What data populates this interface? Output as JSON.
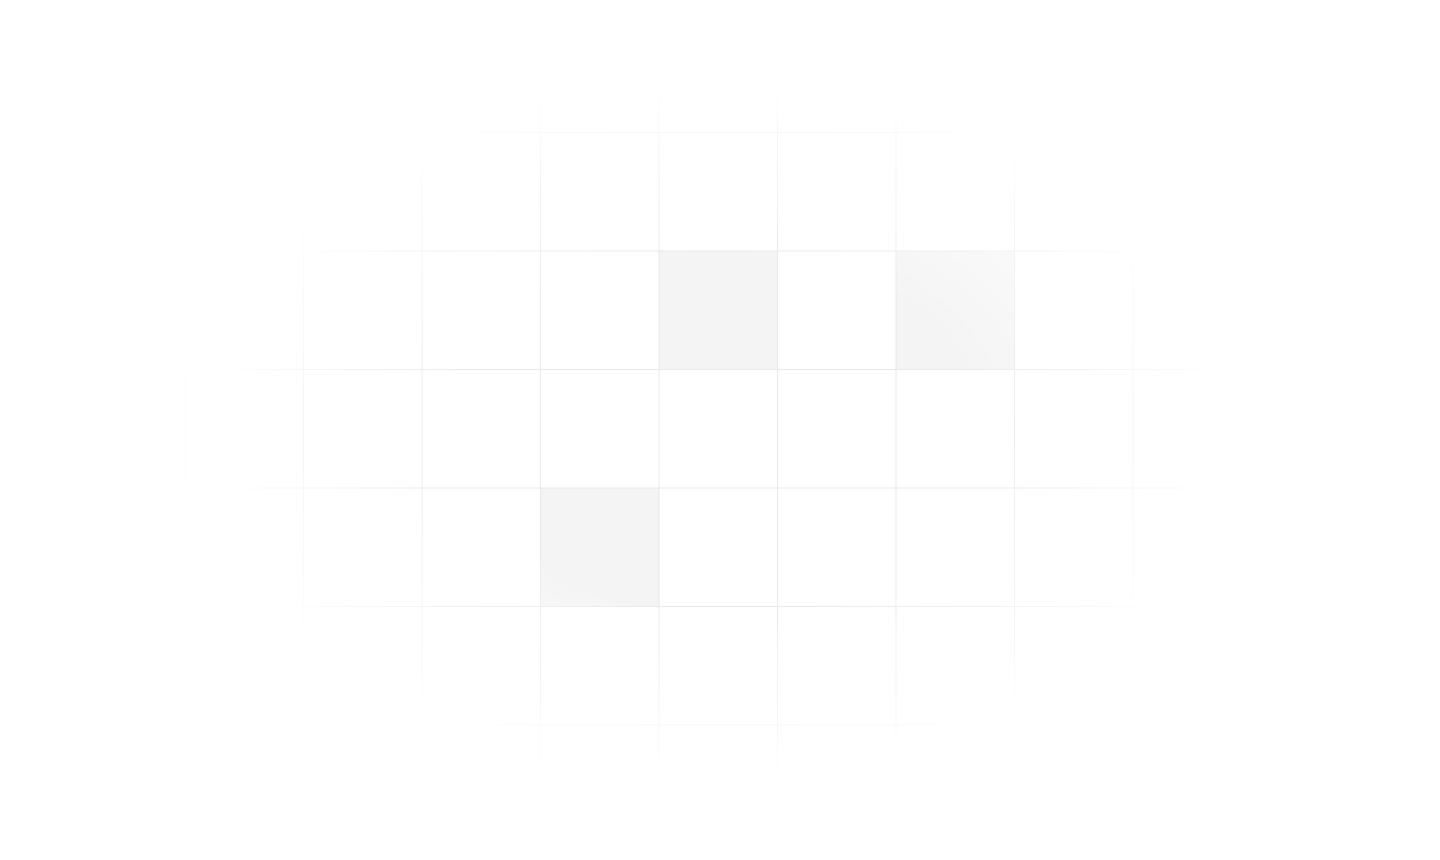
{
  "background": {
    "page_color": "#ffffff",
    "grid_line_color": "#e9e9ec",
    "highlight_cell_color": "#f4f4f5",
    "highlighted_cells": [
      {
        "row": 2,
        "col": 4
      },
      {
        "row": 2,
        "col": 6
      },
      {
        "row": 4,
        "col": 3
      }
    ]
  }
}
